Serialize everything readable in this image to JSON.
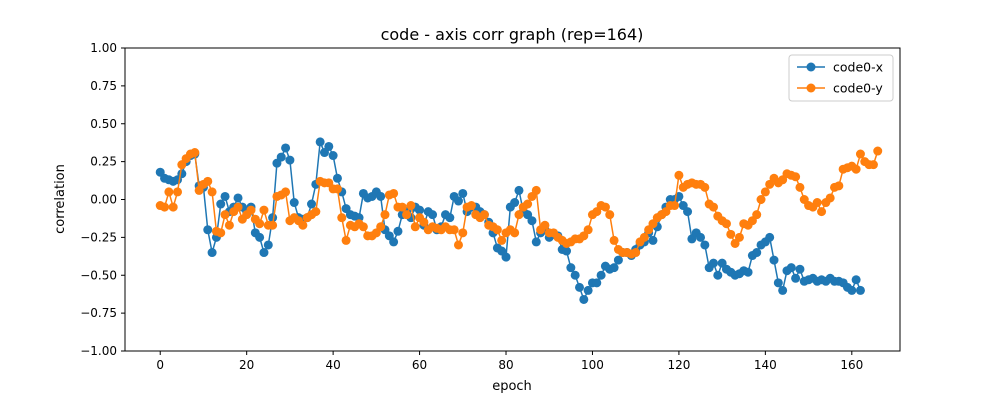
{
  "chart_data": {
    "type": "line",
    "title": "code - axis corr graph (rep=164)",
    "xlabel": "epoch",
    "ylabel": "correlation",
    "xlim": [
      -8.15,
      171.15
    ],
    "ylim": [
      -1.0,
      1.0
    ],
    "xticks": [
      0,
      20,
      40,
      60,
      80,
      100,
      120,
      140,
      160
    ],
    "yticks": [
      -1.0,
      -0.75,
      -0.5,
      -0.25,
      0.0,
      0.25,
      0.5,
      0.75,
      1.0
    ],
    "xtick_labels": [
      "0",
      "20",
      "40",
      "60",
      "80",
      "100",
      "120",
      "140",
      "160"
    ],
    "ytick_labels": [
      "−1.00",
      "−0.75",
      "−0.50",
      "−0.25",
      "0.00",
      "0.25",
      "0.50",
      "0.75",
      "1.00"
    ],
    "grid": false,
    "legend_position": "top-right",
    "series": [
      {
        "name": "code0-x",
        "color": "#1f77b4",
        "marker": "circle",
        "values": [
          0.18,
          0.14,
          0.13,
          0.12,
          0.13,
          0.17,
          0.25,
          0.29,
          0.3,
          0.09,
          0.08,
          -0.2,
          -0.35,
          -0.25,
          -0.03,
          0.02,
          -0.08,
          -0.05,
          0.01,
          -0.05,
          -0.08,
          -0.05,
          -0.22,
          -0.25,
          -0.35,
          -0.3,
          -0.12,
          0.24,
          0.28,
          0.34,
          0.26,
          -0.02,
          -0.12,
          -0.13,
          -0.12,
          -0.03,
          0.1,
          0.38,
          0.31,
          0.35,
          0.29,
          0.14,
          0.05,
          -0.06,
          -0.1,
          -0.11,
          -0.12,
          0.04,
          0.01,
          0.02,
          0.05,
          0.02,
          -0.2,
          -0.24,
          -0.28,
          -0.21,
          -0.1,
          -0.08,
          -0.12,
          -0.05,
          -0.07,
          -0.17,
          -0.08,
          -0.1,
          -0.2,
          -0.18,
          -0.1,
          -0.12,
          0.02,
          -0.01,
          0.04,
          -0.08,
          -0.05,
          -0.05,
          -0.08,
          -0.1,
          -0.15,
          -0.22,
          -0.32,
          -0.34,
          -0.38,
          -0.05,
          -0.02,
          0.06,
          -0.08,
          -0.1,
          -0.14,
          -0.28,
          -0.22,
          -0.2,
          -0.25,
          -0.23,
          -0.24,
          -0.33,
          -0.34,
          -0.45,
          -0.5,
          -0.58,
          -0.66,
          -0.6,
          -0.55,
          -0.55,
          -0.5,
          -0.44,
          -0.46,
          -0.45,
          -0.4,
          -0.35,
          -0.35,
          -0.37,
          -0.33,
          -0.3,
          -0.28,
          -0.22,
          -0.27,
          -0.18,
          -0.1,
          -0.05,
          0.0,
          0.0,
          0.02,
          -0.04,
          -0.08,
          -0.26,
          -0.22,
          -0.25,
          -0.3,
          -0.45,
          -0.42,
          -0.5,
          -0.42,
          -0.46,
          -0.48,
          -0.5,
          -0.49,
          -0.47,
          -0.48,
          -0.37,
          -0.35,
          -0.3,
          -0.28,
          -0.25,
          -0.4,
          -0.55,
          -0.6,
          -0.47,
          -0.45,
          -0.52,
          -0.46,
          -0.54,
          -0.53,
          -0.52,
          -0.54,
          -0.53,
          -0.54,
          -0.52,
          -0.54,
          -0.54,
          -0.55,
          -0.58,
          -0.6,
          -0.53,
          -0.6
        ],
        "x_start": 0
      },
      {
        "name": "code0-y",
        "color": "#ff7f0e",
        "marker": "circle",
        "values": [
          -0.04,
          -0.05,
          0.05,
          -0.05,
          0.05,
          0.23,
          0.27,
          0.3,
          0.31,
          0.06,
          0.1,
          0.12,
          0.05,
          -0.21,
          -0.22,
          -0.1,
          -0.17,
          -0.08,
          -0.05,
          -0.13,
          -0.1,
          -0.07,
          -0.13,
          -0.16,
          -0.07,
          -0.17,
          -0.17,
          0.02,
          0.03,
          0.05,
          -0.14,
          -0.12,
          -0.14,
          -0.17,
          -0.12,
          -0.1,
          -0.08,
          0.12,
          0.11,
          0.11,
          0.07,
          0.07,
          -0.12,
          -0.27,
          -0.17,
          -0.18,
          -0.16,
          -0.18,
          -0.24,
          -0.24,
          -0.22,
          -0.18,
          -0.1,
          0.03,
          0.04,
          -0.05,
          -0.05,
          -0.1,
          -0.04,
          -0.18,
          -0.12,
          -0.15,
          -0.2,
          -0.18,
          -0.19,
          -0.2,
          -0.18,
          -0.2,
          -0.2,
          -0.3,
          -0.22,
          -0.05,
          -0.04,
          -0.1,
          -0.12,
          -0.1,
          -0.17,
          -0.18,
          -0.2,
          -0.27,
          -0.22,
          -0.2,
          -0.22,
          -0.1,
          -0.05,
          -0.03,
          0.02,
          0.06,
          -0.2,
          -0.17,
          -0.22,
          -0.22,
          -0.25,
          -0.27,
          -0.29,
          -0.28,
          -0.26,
          -0.26,
          -0.24,
          -0.2,
          -0.1,
          -0.08,
          -0.04,
          -0.05,
          -0.1,
          -0.27,
          -0.33,
          -0.35,
          -0.35,
          -0.36,
          -0.35,
          -0.28,
          -0.25,
          -0.2,
          -0.16,
          -0.12,
          -0.1,
          -0.08,
          -0.04,
          -0.04,
          0.16,
          0.08,
          0.1,
          0.11,
          0.1,
          0.1,
          0.08,
          -0.03,
          -0.05,
          -0.11,
          -0.14,
          -0.16,
          -0.23,
          -0.29,
          -0.25,
          -0.16,
          -0.17,
          -0.14,
          -0.1,
          0.0,
          0.05,
          0.1,
          0.14,
          0.11,
          0.13,
          0.17,
          0.16,
          0.15,
          0.08,
          0.0,
          -0.04,
          -0.05,
          -0.02,
          -0.08,
          -0.02,
          0.01,
          0.08,
          0.09,
          0.2,
          0.21,
          0.22,
          0.2,
          0.3,
          0.25,
          0.23,
          0.23,
          0.32
        ],
        "x_start": 0
      }
    ]
  }
}
